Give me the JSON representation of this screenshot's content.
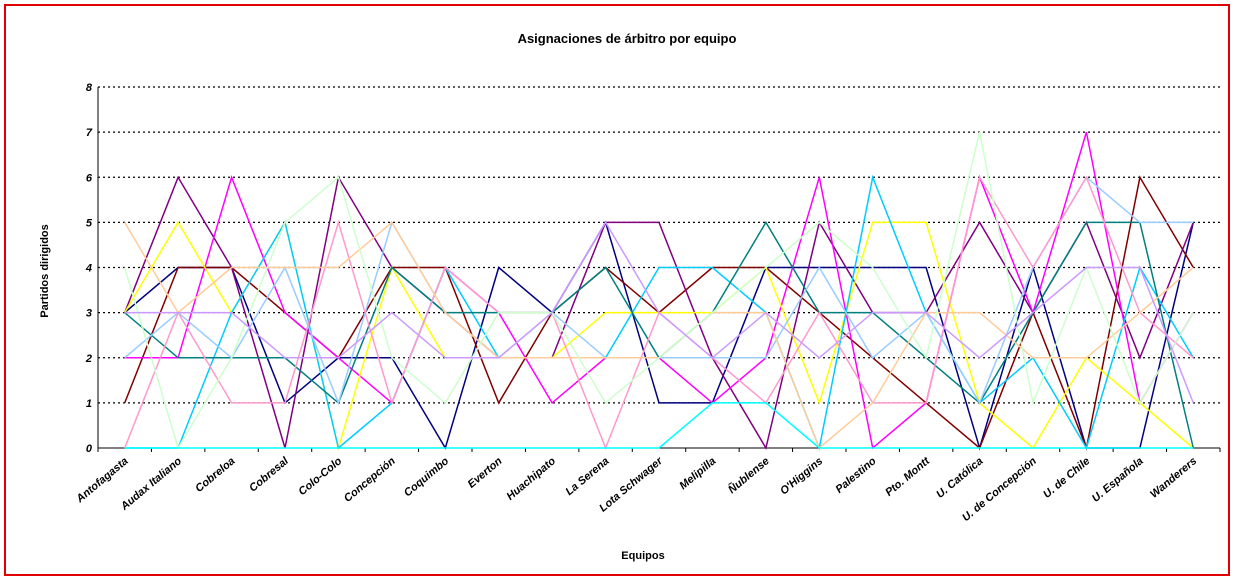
{
  "chart_data": {
    "type": "line",
    "title": "Asignaciones de árbitro por equipo",
    "xlabel": "Equipos",
    "ylabel": "Partidos dirigidos",
    "ylim": [
      0,
      8
    ],
    "yticks": [
      0,
      1,
      2,
      3,
      4,
      5,
      6,
      7,
      8
    ],
    "grid": true,
    "legend": "none",
    "categories": [
      "Antofagasta",
      "Audax Italiano",
      "Cobreloa",
      "Cobresal",
      "Colo-Colo",
      "Concepción",
      "Coquimbo",
      "Everton",
      "Huachipato",
      "La Serena",
      "Lota Schwager",
      "Melipilla",
      "Ñublense",
      "O'Higgins",
      "Palestino",
      "Pto. Montt",
      "U. Católica",
      "U. de Concepción",
      "U. de Chile",
      "U. Española",
      "Wanderers"
    ],
    "series": [
      {
        "color": "#000080",
        "values": [
          3,
          4,
          4,
          1,
          2,
          2,
          0,
          4,
          3,
          5,
          1,
          1,
          4,
          4,
          4,
          4,
          0,
          4,
          0,
          0,
          5
        ]
      },
      {
        "color": "#800000",
        "values": [
          1,
          4,
          4,
          3,
          2,
          4,
          4,
          1,
          3,
          4,
          3,
          4,
          4,
          3,
          2,
          1,
          0,
          3,
          0,
          6,
          4
        ]
      },
      {
        "color": "#800080",
        "values": [
          3,
          6,
          4,
          0,
          6,
          4,
          3,
          2,
          2,
          5,
          5,
          2,
          0,
          5,
          3,
          3,
          5,
          3,
          5,
          2,
          5
        ]
      },
      {
        "color": "#ff00ff",
        "values": [
          2,
          2,
          6,
          3,
          2,
          1,
          4,
          3,
          1,
          2,
          2,
          1,
          2,
          6,
          0,
          1,
          6,
          3,
          7,
          1,
          3
        ]
      },
      {
        "color": "#ffff00",
        "values": [
          3,
          5,
          3,
          5,
          0,
          4,
          2,
          2,
          2,
          3,
          3,
          3,
          4,
          1,
          5,
          5,
          1,
          0,
          2,
          1,
          0
        ]
      },
      {
        "color": "#00ccff",
        "values": [
          0,
          0,
          3,
          5,
          0,
          1,
          4,
          2,
          2,
          2,
          4,
          4,
          3,
          0,
          6,
          3,
          1,
          2,
          0,
          4,
          2
        ]
      },
      {
        "color": "#008080",
        "values": [
          3,
          2,
          2,
          2,
          1,
          4,
          3,
          3,
          3,
          4,
          2,
          3,
          5,
          3,
          3,
          2,
          1,
          3,
          5,
          5,
          0
        ]
      },
      {
        "color": "#99ccff",
        "values": [
          2,
          3,
          2,
          4,
          1,
          5,
          3,
          2,
          3,
          2,
          2,
          2,
          2,
          4,
          2,
          3,
          1,
          4,
          6,
          5,
          5
        ]
      },
      {
        "color": "#ff99cc",
        "values": [
          0,
          3,
          1,
          1,
          5,
          1,
          4,
          3,
          3,
          0,
          3,
          2,
          1,
          3,
          1,
          1,
          6,
          4,
          6,
          3,
          2
        ]
      },
      {
        "color": "#ffcc99",
        "values": [
          5,
          3,
          4,
          4,
          4,
          5,
          3,
          2,
          2,
          2,
          2,
          3,
          3,
          0,
          1,
          3,
          3,
          2,
          2,
          3,
          4
        ]
      },
      {
        "color": "#ccffcc",
        "values": [
          4,
          0,
          2,
          5,
          6,
          2,
          1,
          3,
          3,
          1,
          2,
          3,
          4,
          5,
          4,
          2,
          7,
          1,
          4,
          1,
          3
        ]
      },
      {
        "color": "#cc99ff",
        "values": [
          3,
          3,
          3,
          2,
          2,
          3,
          2,
          2,
          3,
          5,
          3,
          2,
          3,
          2,
          3,
          3,
          2,
          3,
          4,
          4,
          1
        ]
      },
      {
        "color": "#00ffff",
        "values": [
          0,
          0,
          0,
          0,
          0,
          0,
          0,
          0,
          0,
          0,
          0,
          1,
          1,
          0,
          0,
          0,
          0,
          0,
          0,
          0,
          0
        ]
      }
    ]
  }
}
